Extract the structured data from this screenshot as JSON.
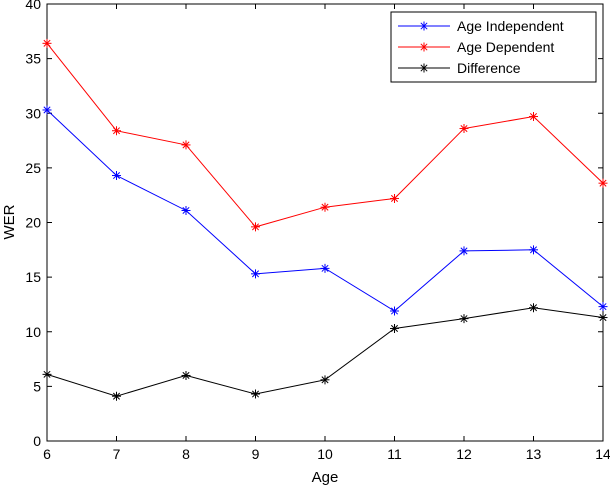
{
  "chart_data": {
    "type": "line",
    "title": "",
    "xlabel": "Age",
    "ylabel": "WER",
    "xlim": [
      6,
      14
    ],
    "ylim": [
      0,
      40
    ],
    "x": [
      6,
      7,
      8,
      9,
      10,
      11,
      12,
      13,
      14
    ],
    "x_ticks": [
      "6",
      "7",
      "8",
      "9",
      "10",
      "11",
      "12",
      "13",
      "14"
    ],
    "y_ticks": [
      "0",
      "5",
      "10",
      "15",
      "20",
      "25",
      "30",
      "35",
      "40"
    ],
    "grid": false,
    "legend_position": "top-right",
    "series": [
      {
        "name": "Age Independent",
        "color": "#0000ff",
        "marker": "asterisk",
        "values": [
          30.3,
          24.3,
          21.1,
          15.3,
          15.8,
          11.9,
          17.4,
          17.5,
          12.3
        ]
      },
      {
        "name": "Age Dependent",
        "color": "#ff0000",
        "marker": "asterisk",
        "values": [
          36.4,
          28.4,
          27.1,
          19.6,
          21.4,
          22.2,
          28.6,
          29.7,
          23.6
        ]
      },
      {
        "name": "Difference",
        "color": "#000000",
        "marker": "asterisk",
        "values": [
          6.1,
          4.1,
          6.0,
          4.3,
          5.6,
          10.3,
          11.2,
          12.2,
          11.3
        ]
      }
    ]
  }
}
